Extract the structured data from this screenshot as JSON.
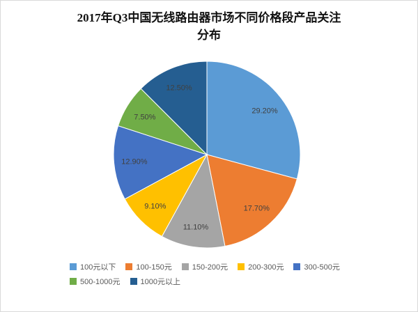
{
  "chart_data": {
    "type": "pie",
    "title": "2017年Q3中国无线路由器市场不同价格段产品关注分布",
    "title_lines": [
      "2017年Q3中国无线路由器市场不同价格段产品关注",
      "分布"
    ],
    "categories": [
      "100元以下",
      "100-150元",
      "150-200元",
      "200-300元",
      "300-500元",
      "500-1000元",
      "1000元以上"
    ],
    "values": [
      29.2,
      17.7,
      11.1,
      9.1,
      12.9,
      7.5,
      12.5
    ],
    "labels": [
      "29.20%",
      "17.70%",
      "11.10%",
      "9.10%",
      "12.90%",
      "7.50%",
      "12.50%"
    ],
    "colors": [
      "#5B9BD5",
      "#ED7D31",
      "#A5A5A5",
      "#FFC000",
      "#4472C4",
      "#70AD47",
      "#255E91"
    ],
    "start_angle_deg": 0,
    "direction": "clockwise",
    "legend_position": "bottom",
    "label_color": "#404040",
    "slice_border_color": "#ffffff"
  }
}
